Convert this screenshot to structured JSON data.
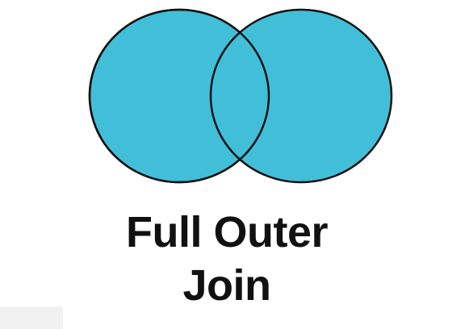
{
  "diagram": {
    "caption_line1": "Full Outer",
    "caption_line2": "Join",
    "fill_color": "#41bfd9",
    "stroke_color": "#111111"
  }
}
